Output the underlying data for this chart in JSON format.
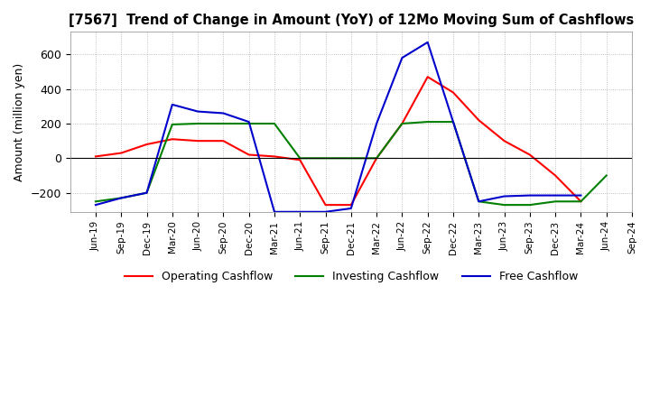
{
  "title": "[7567]  Trend of Change in Amount (YoY) of 12Mo Moving Sum of Cashflows",
  "ylabel": "Amount (million yen)",
  "ylim": [
    -310,
    730
  ],
  "yticks": [
    -200,
    0,
    200,
    400,
    600
  ],
  "background_color": "#ffffff",
  "grid_color": "#b0b0b0",
  "x_labels": [
    "Jun-19",
    "Sep-19",
    "Dec-19",
    "Mar-20",
    "Jun-20",
    "Sep-20",
    "Dec-20",
    "Mar-21",
    "Jun-21",
    "Sep-21",
    "Dec-21",
    "Mar-22",
    "Jun-22",
    "Sep-22",
    "Dec-22",
    "Mar-23",
    "Jun-23",
    "Sep-23",
    "Dec-23",
    "Mar-24",
    "Jun-24",
    "Sep-24"
  ],
  "operating_cashflow": [
    10,
    30,
    80,
    110,
    100,
    100,
    20,
    10,
    -10,
    -270,
    -270,
    0,
    200,
    470,
    380,
    220,
    100,
    20,
    -100,
    -250,
    null,
    null
  ],
  "investing_cashflow": [
    -250,
    -230,
    -200,
    195,
    200,
    200,
    200,
    200,
    0,
    0,
    0,
    0,
    200,
    210,
    210,
    -250,
    -270,
    -270,
    -250,
    -250,
    -100,
    null
  ],
  "free_cashflow": [
    -270,
    -230,
    -200,
    310,
    270,
    260,
    210,
    -310,
    -310,
    -310,
    -290,
    200,
    580,
    670,
    210,
    -250,
    -220,
    -215,
    -215,
    -215,
    null,
    null
  ],
  "operating_color": "#ff0000",
  "investing_color": "#008000",
  "free_color": "#0000cc",
  "line_width": 1.5
}
